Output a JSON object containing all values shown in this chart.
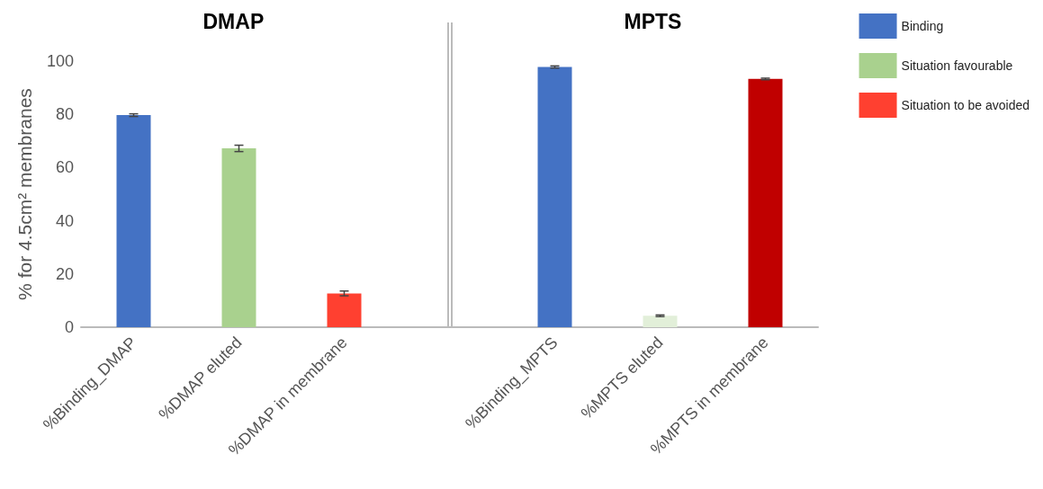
{
  "chart_data": {
    "type": "bar",
    "categories": [
      "%Binding_DMAP",
      "%DMAP eluted",
      "%DMAP in membrane",
      null,
      "%Binding_MPTS",
      "%MPTS eluted",
      "%MPTS in membrane"
    ],
    "series": [
      {
        "name": "Binding",
        "color": "#4472c4",
        "colors": [
          "#4472c4",
          null,
          null,
          null,
          "#4472c4",
          null,
          null
        ],
        "values": [
          79.7,
          null,
          null,
          null,
          97.8,
          null,
          null
        ],
        "errors": [
          0.5,
          null,
          null,
          null,
          0.4,
          null,
          null
        ]
      },
      {
        "name": "Situation favourable",
        "color": "#a9d18e",
        "colors": [
          null,
          "#a9d18e",
          null,
          null,
          null,
          "#e2efd9",
          null
        ],
        "values": [
          null,
          67.2,
          null,
          null,
          null,
          4.3,
          null
        ],
        "errors": [
          null,
          1.2,
          null,
          null,
          null,
          0.3,
          null
        ]
      },
      {
        "name": "Situation to be avoided",
        "color": "#ff4030",
        "colors": [
          null,
          null,
          "#ff4030",
          null,
          null,
          null,
          "#c00000"
        ],
        "values": [
          null,
          null,
          12.7,
          null,
          null,
          null,
          93.3
        ],
        "errors": [
          null,
          null,
          0.9,
          null,
          null,
          null,
          0.3
        ]
      }
    ],
    "ylabel": "% for 4.5cm² membranes",
    "ylim": [
      0,
      100
    ],
    "yticks": [
      0,
      20,
      40,
      60,
      80,
      100
    ],
    "annotations": [
      "DMAP",
      "MPTS"
    ],
    "ref_lines": [
      {
        "axis": "x",
        "value": null,
        "color": "#bbbbbb"
      }
    ],
    "grid": false,
    "legend": "top right"
  }
}
